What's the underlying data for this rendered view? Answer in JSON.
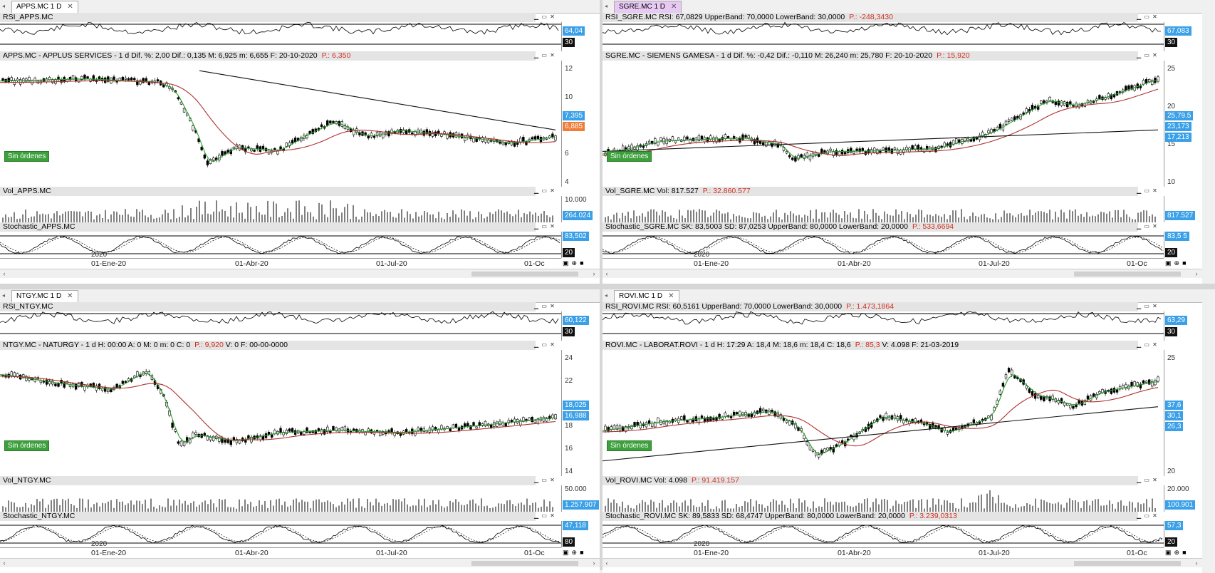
{
  "windows": [
    {
      "tab": "APPS.MC 1 D",
      "tab_active": false,
      "rsi_title": "RSI_APPS.MC",
      "rsi_title_red": "",
      "rsi_value": "64,04",
      "rsi_level": "30",
      "price_title": "APPS.MC - APPLUS SERVICES -  1 d  Dif. %: 2,00  Dif.: 0,135  M: 6,925  m: 6,655  F: 20-10-2020",
      "price_title_red": "P.: 6,350",
      "price_ticks": [
        "12",
        "10",
        "8",
        "6",
        "4"
      ],
      "price_tags": [
        {
          "text": "7,395",
          "color": "blue"
        },
        {
          "text": "6,885",
          "color": "orange"
        }
      ],
      "no_orders": "Sin órdenes",
      "vol_title": "Vol_APPS.MC",
      "vol_title_red": "",
      "vol_tick": "10.000",
      "vol_value": "264.024",
      "stoch_title": "Stochastic_APPS.MC",
      "stoch_title_red": "",
      "stoch_value": "83,502",
      "stoch_level": "20",
      "year": "2020",
      "dates": [
        "01-Ene-20",
        "01-Abr-20",
        "01-Jul-20",
        "01-Oc"
      ]
    },
    {
      "tab": "SGRE.MC 1 D",
      "tab_active": true,
      "rsi_title": "RSI_SGRE.MC  RSI: 67,0829  UpperBand: 70,0000  LowerBand: 30,0000",
      "rsi_title_red": "P.: -248,3430",
      "rsi_value": "67,083",
      "rsi_level": "30",
      "price_title": "SGRE.MC - SIEMENS GAMESA -  1 d  Dif. %: -0,42  Dif.: -0,110  M: 26,240  m: 25,780  F: 20-10-2020",
      "price_title_red": "P.: 15,920",
      "price_ticks": [
        "25",
        "20",
        "15",
        "10"
      ],
      "price_tags": [
        {
          "text": "25,79.5",
          "color": "blue"
        },
        {
          "text": "23,173",
          "color": "blue"
        },
        {
          "text": "17,213",
          "color": "blue"
        }
      ],
      "no_orders": "Sin órdenes",
      "vol_title": "Vol_SGRE.MC  Vol: 817.527",
      "vol_title_red": "P.: 32.860.577",
      "vol_tick": "",
      "vol_value": "817.527",
      "stoch_title": "Stochastic_SGRE.MC  SK: 83,5003  SD: 87,0253  UpperBand: 80,0000  LowerBand: 20,0000",
      "stoch_title_red": "P.: 533,6694",
      "stoch_value": "83,5 5",
      "stoch_level": "20",
      "year": "2020",
      "dates": [
        "01-Ene-20",
        "01-Abr-20",
        "01-Jul-20",
        "01-Oc"
      ]
    },
    {
      "tab": "NTGY.MC 1 D",
      "tab_active": false,
      "rsi_title": "RSI_NTGY.MC",
      "rsi_title_red": "",
      "rsi_value": "60,122",
      "rsi_level": "30",
      "price_title": "NTGY.MC - NATURGY -  1 d  H: 00:00  A: 0  M: 0  m: 0  C: 0",
      "price_title_red": "P.: 9,920",
      "price_title_tail": "  V: 0  F: 00-00-0000",
      "price_ticks": [
        "24",
        "22",
        "20",
        "18",
        "16",
        "14"
      ],
      "price_tags": [
        {
          "text": "18,025",
          "color": "blue"
        },
        {
          "text": "16,988",
          "color": "blue"
        }
      ],
      "no_orders": "Sin órdenes",
      "vol_title": "Vol_NTGY.MC",
      "vol_title_red": "",
      "vol_tick": "50.000",
      "vol_value": "1.257.907",
      "stoch_title": "Stochastic_NTGY.MC",
      "stoch_title_red": "",
      "stoch_value": "47,118",
      "stoch_level": "80",
      "year": "2020",
      "dates": [
        "01-Ene-20",
        "01-Abr-20",
        "01-Jul-20",
        "01-Oc"
      ]
    },
    {
      "tab": "ROVI.MC 1 D",
      "tab_active": false,
      "rsi_title": "RSI_ROVI.MC  RSI: 60,5161  UpperBand: 70,0000  LowerBand: 30,0000",
      "rsi_title_red": "P.: 1.473,1864",
      "rsi_value": "63,29",
      "rsi_level": "30",
      "price_title": "ROVI.MC - LABORAT.ROVI -  1 d  H: 17:29  A: 18,4  M: 18,6  m: 18,4  C: 18,6",
      "price_title_red": "P.: 85,3",
      "price_title_tail": "  V: 4.098  F: 21-03-2019",
      "price_ticks": [
        "25",
        "20"
      ],
      "price_tags": [
        {
          "text": "37,6",
          "color": "blue"
        },
        {
          "text": "30,1",
          "color": "blue"
        },
        {
          "text": "26,3",
          "color": "blue"
        }
      ],
      "no_orders": "Sin órdenes",
      "vol_title": "Vol_ROVI.MC  Vol: 4.098",
      "vol_title_red": "P.: 91.419.157",
      "vol_tick": "20.000",
      "vol_value": "100.901",
      "stoch_title": "Stochastic_ROVI.MC  SK: 89,5833  SD: 68,4747  UpperBand: 80,0000  LowerBand: 20,0000",
      "stoch_title_red": "P.: 3.239,0313",
      "stoch_value": "57,3",
      "stoch_level": "20",
      "year": "2020",
      "dates": [
        "01-Ene-20",
        "01-Abr-20",
        "01-Jul-20",
        "01-Oc"
      ]
    }
  ],
  "colors": {
    "green_ma": "#2aa02a",
    "red_ma": "#b03030",
    "long_ma": "#111111",
    "tag_blue": "#3aa0e8",
    "tag_orange": "#f07c38"
  }
}
